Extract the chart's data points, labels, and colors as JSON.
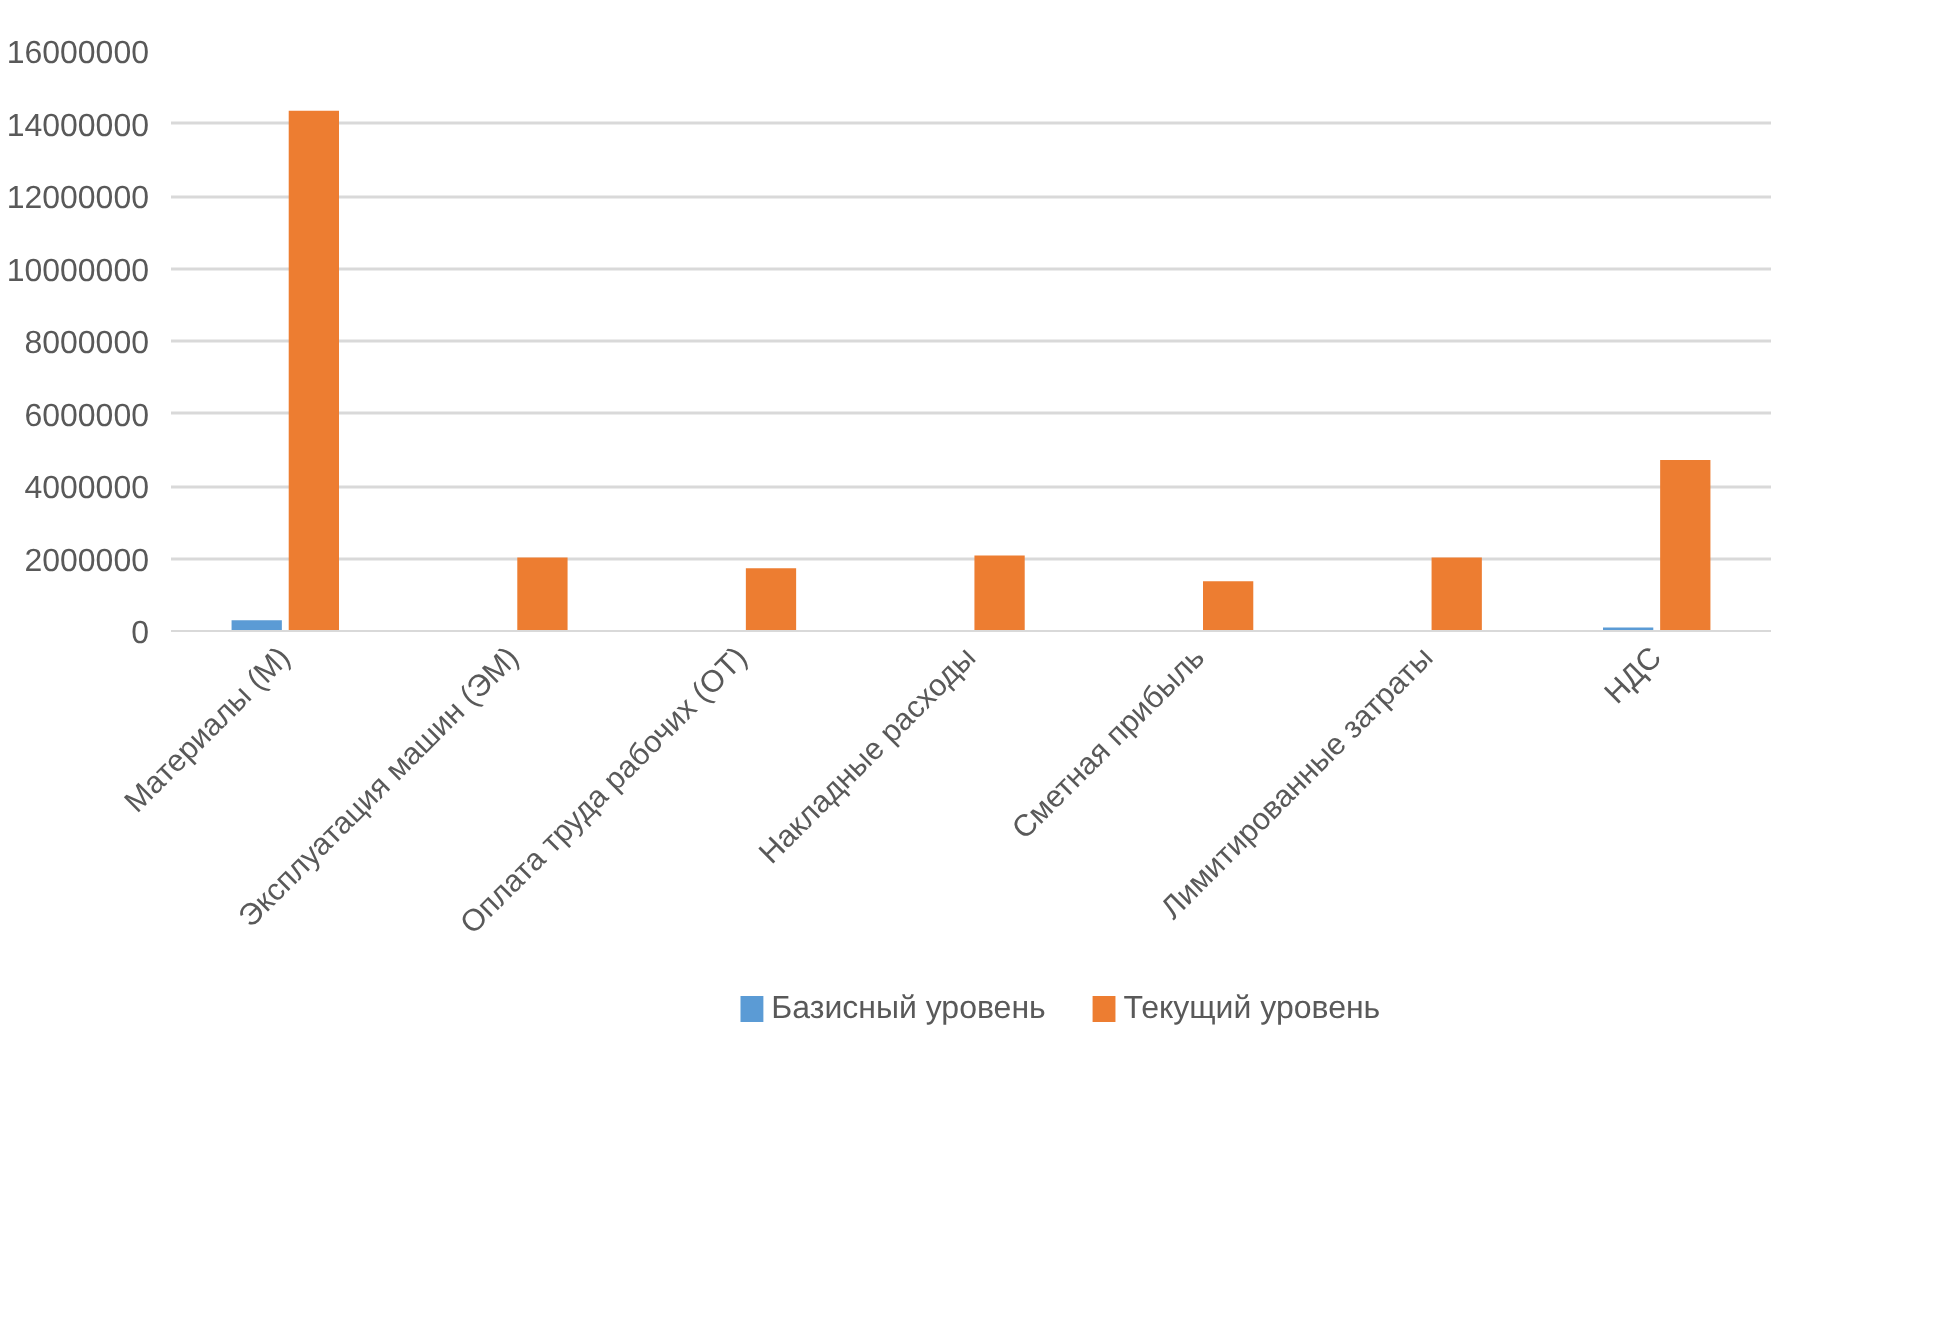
{
  "chart_data": {
    "type": "bar",
    "categories": [
      "Материалы (М)",
      "Эксплуатация машин (ЭМ)",
      "Оплата труда рабочих (ОТ)",
      "Накладные расходы",
      "Сметная прибыль",
      "Лимитированные затраты",
      "НДС"
    ],
    "series": [
      {
        "name": "Базисный  уровень",
        "color": "#5b9bd5",
        "values": [
          300000,
          null,
          0,
          null,
          0,
          null,
          100000
        ]
      },
      {
        "name": "Текущий уровень",
        "color": "#ed7d31",
        "values": [
          14350000,
          2030000,
          1730000,
          2080000,
          1370000,
          2030000,
          4720000
        ]
      }
    ],
    "ylim": [
      0,
      16000000
    ],
    "yticks": [
      0,
      2000000,
      4000000,
      6000000,
      8000000,
      10000000,
      12000000,
      14000000,
      16000000
    ],
    "grid": "y",
    "legend": "bottom"
  }
}
